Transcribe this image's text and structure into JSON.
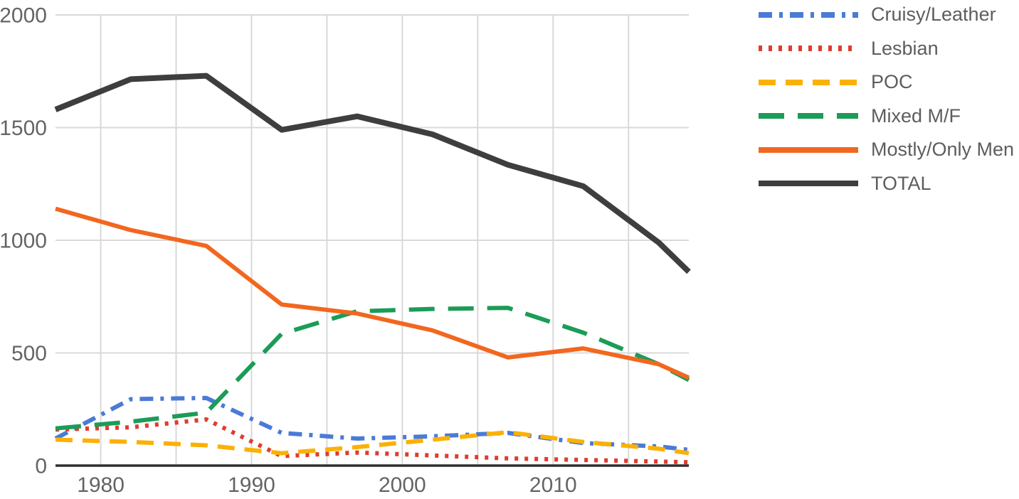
{
  "chart_data": {
    "type": "line",
    "title": "",
    "xlabel": "",
    "ylabel": "",
    "x": [
      1977,
      1982,
      1987,
      1992,
      1997,
      2002,
      2007,
      2012,
      2017,
      2019
    ],
    "xlim": [
      1977,
      2019
    ],
    "ylim": [
      0,
      2000
    ],
    "yticks": [
      0,
      500,
      1000,
      1500,
      2000
    ],
    "xticks": [
      1980,
      1990,
      2000,
      2010
    ],
    "grid_years": [
      1980,
      1985,
      1990,
      1995,
      2000,
      2005,
      2010,
      2015
    ],
    "grid": true,
    "legend_position": "top-right",
    "gridline_color": "#d9d9d9",
    "axisline_color": "#2f2f2f",
    "axis_text_color": "#646464",
    "legend_text_color": "#5d5d5d",
    "series": [
      {
        "name": "Cruisy/Leather",
        "color": "#4a7bd6",
        "dash": "19 10 5 10",
        "width": 6,
        "values": [
          120,
          295,
          300,
          145,
          120,
          130,
          145,
          100,
          85,
          70
        ]
      },
      {
        "name": "Lesbian",
        "color": "#e23b2d",
        "dash": "5 9",
        "width": 6,
        "values": [
          160,
          170,
          205,
          42,
          58,
          45,
          32,
          25,
          18,
          15
        ]
      },
      {
        "name": "POC",
        "color": "#fbb104",
        "dash": "24 14",
        "width": 6,
        "values": [
          115,
          105,
          90,
          55,
          82,
          115,
          148,
          105,
          75,
          55
        ]
      },
      {
        "name": "Mixed M/F",
        "color": "#1b9c57",
        "dash": "36 19",
        "width": 6,
        "values": [
          165,
          195,
          235,
          585,
          685,
          695,
          700,
          590,
          450,
          380
        ]
      },
      {
        "name": "Mostly/Only Men",
        "color": "#f2671f",
        "dash": "",
        "width": 6,
        "values": [
          1140,
          1045,
          975,
          715,
          675,
          600,
          480,
          520,
          450,
          390
        ]
      },
      {
        "name": "TOTAL",
        "color": "#3e3e3e",
        "dash": "",
        "width": 8,
        "values": [
          1580,
          1715,
          1730,
          1490,
          1550,
          1470,
          1335,
          1240,
          990,
          860
        ]
      }
    ]
  }
}
